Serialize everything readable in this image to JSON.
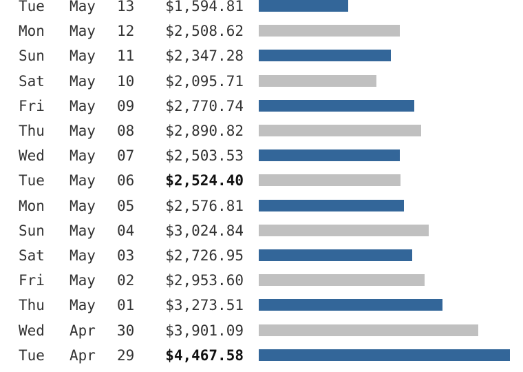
{
  "chart_data": {
    "type": "bar",
    "orientation": "horizontal",
    "colors": {
      "bar_primary": "#336699",
      "bar_secondary": "#c0c0c0"
    },
    "rows": [
      {
        "dow": "Tue",
        "month": "May",
        "day": "13",
        "amount_label": "$1,594.81",
        "value": 1594.81,
        "bold": false
      },
      {
        "dow": "Mon",
        "month": "May",
        "day": "12",
        "amount_label": "$2,508.62",
        "value": 2508.62,
        "bold": false
      },
      {
        "dow": "Sun",
        "month": "May",
        "day": "11",
        "amount_label": "$2,347.28",
        "value": 2347.28,
        "bold": false
      },
      {
        "dow": "Sat",
        "month": "May",
        "day": "10",
        "amount_label": "$2,095.71",
        "value": 2095.71,
        "bold": false
      },
      {
        "dow": "Fri",
        "month": "May",
        "day": "09",
        "amount_label": "$2,770.74",
        "value": 2770.74,
        "bold": false
      },
      {
        "dow": "Thu",
        "month": "May",
        "day": "08",
        "amount_label": "$2,890.82",
        "value": 2890.82,
        "bold": false
      },
      {
        "dow": "Wed",
        "month": "May",
        "day": "07",
        "amount_label": "$2,503.53",
        "value": 2503.53,
        "bold": false
      },
      {
        "dow": "Tue",
        "month": "May",
        "day": "06",
        "amount_label": "$2,524.40",
        "value": 2524.4,
        "bold": true
      },
      {
        "dow": "Mon",
        "month": "May",
        "day": "05",
        "amount_label": "$2,576.81",
        "value": 2576.81,
        "bold": false
      },
      {
        "dow": "Sun",
        "month": "May",
        "day": "04",
        "amount_label": "$3,024.84",
        "value": 3024.84,
        "bold": false
      },
      {
        "dow": "Sat",
        "month": "May",
        "day": "03",
        "amount_label": "$2,726.95",
        "value": 2726.95,
        "bold": false
      },
      {
        "dow": "Fri",
        "month": "May",
        "day": "02",
        "amount_label": "$2,953.60",
        "value": 2953.6,
        "bold": false
      },
      {
        "dow": "Thu",
        "month": "May",
        "day": "01",
        "amount_label": "$3,273.51",
        "value": 3273.51,
        "bold": false
      },
      {
        "dow": "Wed",
        "month": "Apr",
        "day": "30",
        "amount_label": "$3,901.09",
        "value": 3901.09,
        "bold": false
      },
      {
        "dow": "Tue",
        "month": "Apr",
        "day": "29",
        "amount_label": "$4,467.58",
        "value": 4467.58,
        "bold": true
      }
    ]
  }
}
